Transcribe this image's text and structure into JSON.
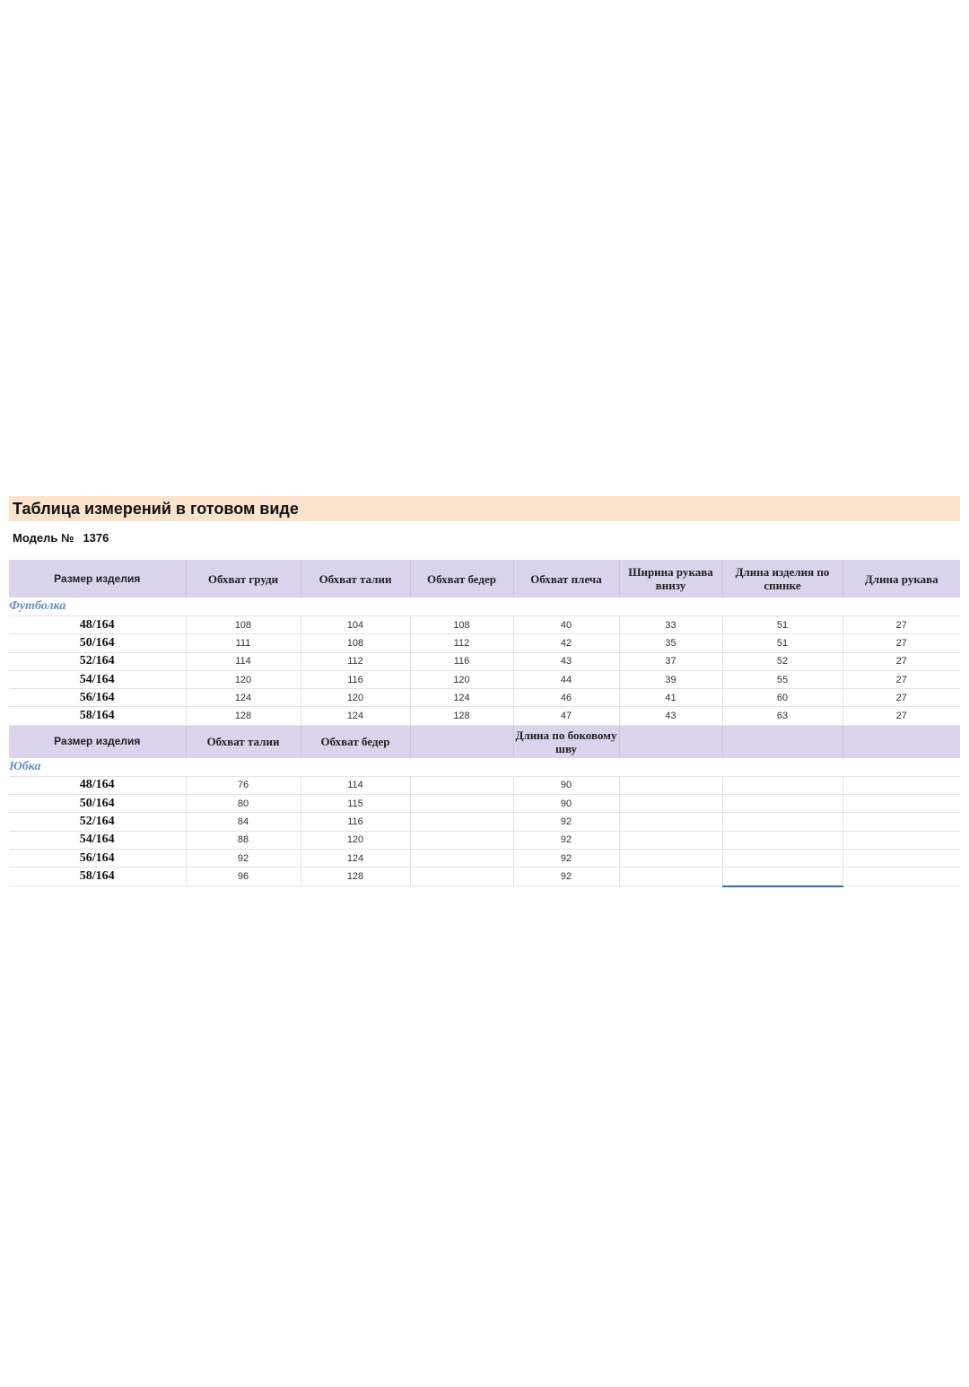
{
  "title": "Таблица измерений в готовом виде",
  "model": {
    "label": "Модель №",
    "number": "1376"
  },
  "colors": {
    "title_bg": "#fce4cc",
    "header_bg": "#dcd3ec",
    "section_text": "#6a8fbf"
  },
  "tshirt": {
    "section": "Футболка",
    "headers": [
      "Размер изделия",
      "Обхват груди",
      "Обхват талии",
      "Обхват бедер",
      "Обхват плеча",
      "Ширина рукава внизу",
      "Длина изделия по спинке",
      "Длина рукава"
    ],
    "rows": [
      [
        "48/164",
        "108",
        "104",
        "108",
        "40",
        "33",
        "51",
        "27"
      ],
      [
        "50/164",
        "111",
        "108",
        "112",
        "42",
        "35",
        "51",
        "27"
      ],
      [
        "52/164",
        "114",
        "112",
        "116",
        "43",
        "37",
        "52",
        "27"
      ],
      [
        "54/164",
        "120",
        "116",
        "120",
        "44",
        "39",
        "55",
        "27"
      ],
      [
        "56/164",
        "124",
        "120",
        "124",
        "46",
        "41",
        "60",
        "27"
      ],
      [
        "58/164",
        "128",
        "124",
        "128",
        "47",
        "43",
        "63",
        "27"
      ]
    ]
  },
  "skirt": {
    "section": "Юбка",
    "headers": [
      "Размер изделия",
      "Обхват талии",
      "Обхват бедер",
      "",
      "Длина по боковому шву",
      "",
      "",
      ""
    ],
    "rows": [
      [
        "48/164",
        "76",
        "114",
        "",
        "90",
        "",
        "",
        ""
      ],
      [
        "50/164",
        "80",
        "115",
        "",
        "90",
        "",
        "",
        ""
      ],
      [
        "52/164",
        "84",
        "116",
        "",
        "92",
        "",
        "",
        ""
      ],
      [
        "54/164",
        "88",
        "120",
        "",
        "92",
        "",
        "",
        ""
      ],
      [
        "56/164",
        "92",
        "124",
        "",
        "92",
        "",
        "",
        ""
      ],
      [
        "58/164",
        "96",
        "128",
        "",
        "92",
        "",
        "",
        ""
      ]
    ]
  }
}
